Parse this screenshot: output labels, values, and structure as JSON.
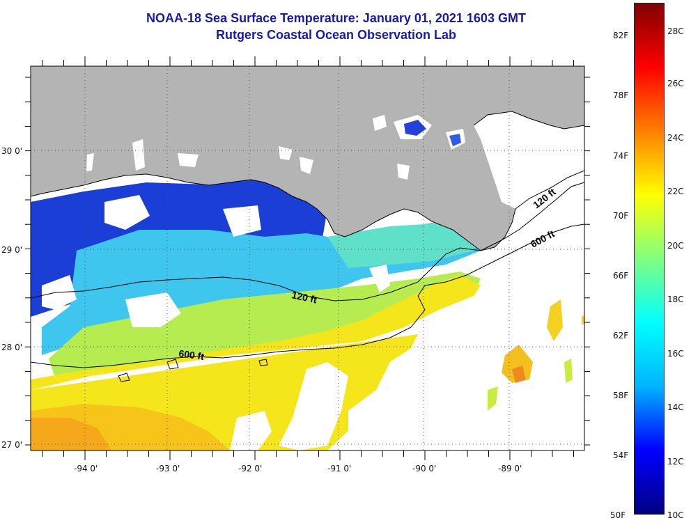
{
  "title_line1": "NOAA-18 Sea Surface Temperature:  January 01, 2021 1603 GMT",
  "title_line2": "Rutgers Coastal Ocean Observation Lab",
  "map": {
    "lon_ticks": [
      "-94 0'",
      "-93 0'",
      "-92 0'",
      "-91 0'",
      "-90 0'",
      "-89 0'"
    ],
    "lat_ticks": [
      "30 0'",
      "29 0'",
      "28 0'",
      "27 0'"
    ],
    "isobaths": [
      "120 ft",
      "600 ft",
      "120 ft",
      "600 ft"
    ],
    "colors": {
      "land": "#b4b4b4",
      "no_data": "#ffffff",
      "coast": "#000000",
      "grid": "#555555"
    }
  },
  "colorbar": {
    "fahrenheit": [
      "82F",
      "78F",
      "74F",
      "70F",
      "66F",
      "62F",
      "58F",
      "54F",
      "50F"
    ],
    "celsius": [
      "28C",
      "26C",
      "24C",
      "22C",
      "20C",
      "18C",
      "16C",
      "14C",
      "12C",
      "10C"
    ],
    "min_c": 10,
    "max_c": 29.5,
    "colors": [
      "#000082",
      "#0000ff",
      "#00b4ff",
      "#00ffff",
      "#80ff80",
      "#ffff00",
      "#ff8000",
      "#ff0000",
      "#800000"
    ]
  }
}
